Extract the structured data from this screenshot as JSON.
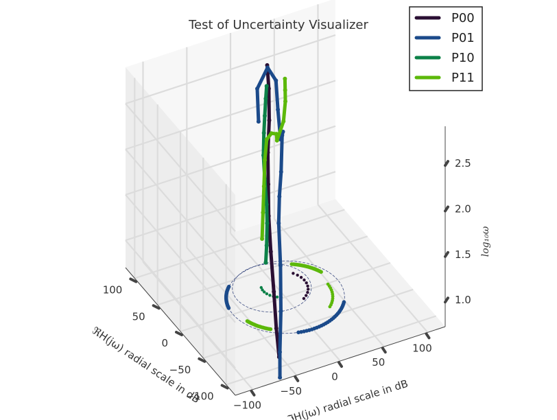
{
  "chart_data": {
    "type": "line",
    "projection": "3d",
    "title": "Test of Uncertainty Visualizer",
    "xlabel": "ℜH(jω) radial scale in dB",
    "ylabel": "ℑH(jω) radial scale in dB",
    "zlabel": "log₁₀ω",
    "x_ticks": [
      "−100",
      "−50",
      "0",
      "50",
      "100"
    ],
    "y_ticks": [
      "−100",
      "−50",
      "0",
      "50",
      "100"
    ],
    "z_ticks": [
      "1.0",
      "1.5",
      "2.0",
      "2.5"
    ],
    "xlim": [
      -120,
      120
    ],
    "ylim": [
      -120,
      120
    ],
    "zlim": [
      0.7,
      2.9
    ],
    "grid": true,
    "legend_position": "top-right",
    "series": [
      {
        "name": "P00",
        "color": "#2a0f33",
        "x": [
          -105,
          -95,
          -80,
          -60,
          -40,
          -20,
          0,
          20,
          40,
          55
        ],
        "y": [
          -62,
          -60,
          -55,
          -48,
          -40,
          -30,
          -20,
          -8,
          2,
          8
        ],
        "z": [
          0.85,
          1.1,
          1.4,
          1.7,
          1.95,
          2.15,
          2.35,
          2.55,
          2.75,
          2.9
        ]
      },
      {
        "name": "P01",
        "color": "#1b4a8a",
        "x": [
          -122,
          -118,
          -105,
          -85,
          -62,
          -50,
          -48,
          -35,
          -10,
          20,
          45,
          55,
          58,
          52,
          30
        ],
        "y": [
          -70,
          -68,
          -60,
          -50,
          -40,
          -33,
          -30,
          -22,
          -8,
          5,
          15,
          18,
          10,
          -5,
          -15
        ],
        "z": [
          0.75,
          1.0,
          1.35,
          1.7,
          2.0,
          2.2,
          2.45,
          2.75,
          2.6,
          2.3,
          2.45,
          2.7,
          2.85,
          2.7,
          2.5
        ]
      },
      {
        "name": "P10",
        "color": "#0c8148",
        "x": [
          20,
          18,
          17,
          18,
          22,
          25,
          24,
          22,
          20,
          18
        ],
        "y": [
          -12,
          -12,
          -12,
          -12,
          -12,
          -12,
          -12,
          -12,
          -12,
          -12
        ],
        "z": [
          1.0,
          1.2,
          1.45,
          1.65,
          1.9,
          2.15,
          2.4,
          2.6,
          2.8,
          2.95
        ]
      },
      {
        "name": "P11",
        "color": "#5cb80a",
        "x": [
          70,
          68,
          66,
          64,
          60,
          40,
          10,
          -20,
          -15,
          0,
          10,
          20
        ],
        "y": [
          10,
          10,
          10,
          10,
          10,
          5,
          -5,
          -20,
          -10,
          0,
          5,
          10
        ],
        "z": [
          0.9,
          1.2,
          1.5,
          1.8,
          2.05,
          2.25,
          2.45,
          2.6,
          2.75,
          2.85,
          2.9,
          2.95
        ]
      }
    ],
    "base_markers": {
      "color_p00": "#2a0f33",
      "color_p01": "#1b4a8a",
      "color_p10": "#0c8148",
      "color_p11": "#5cb80a"
    }
  }
}
